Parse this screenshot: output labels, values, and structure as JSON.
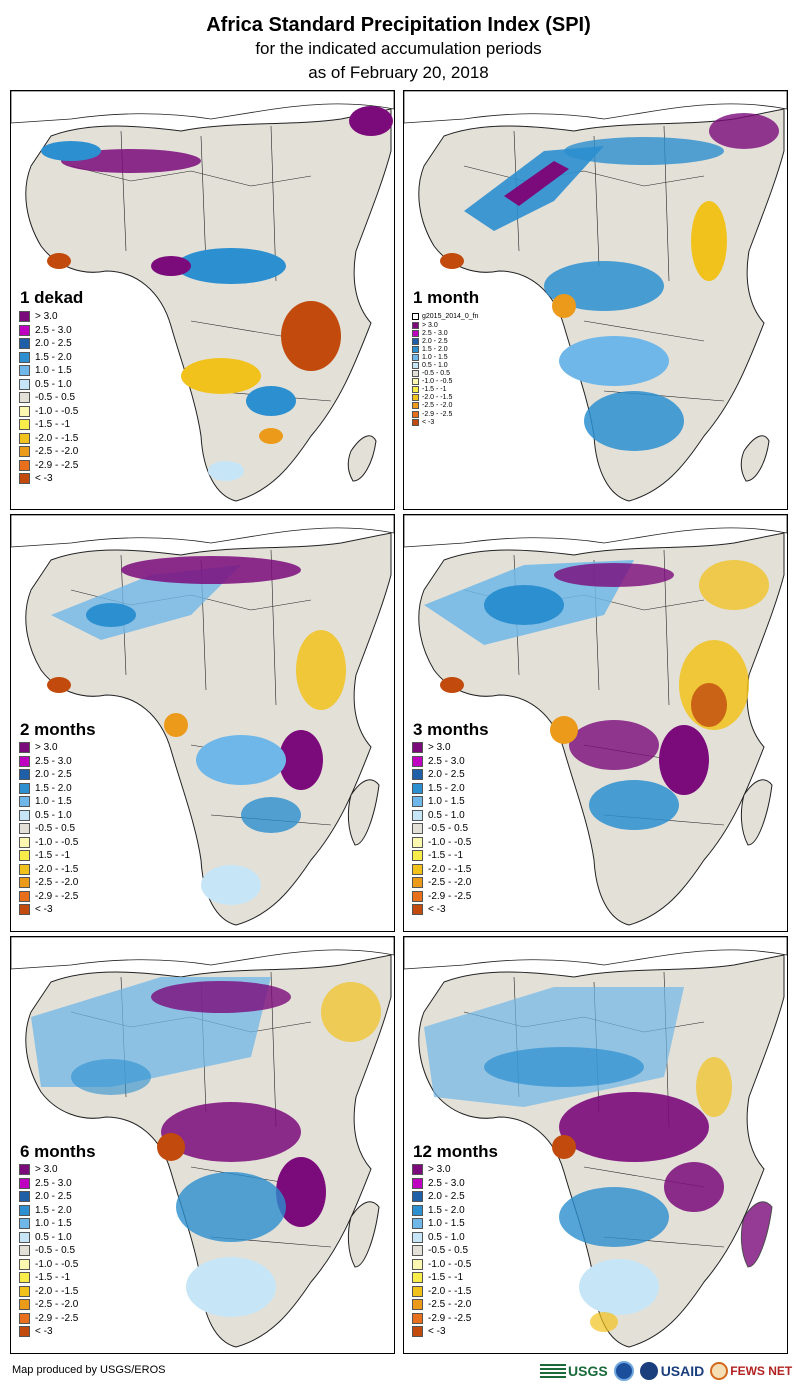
{
  "header": {
    "title": "Africa Standard Precipitation Index (SPI)",
    "subtitle": "for the indicated accumulation periods",
    "date_line": "as of February 20, 2018"
  },
  "colors": {
    "c_gt3": "#7b0a7b",
    "c_25_3": "#c000c0",
    "c_2_25": "#1f5fa8",
    "c_15_2": "#2c8fd0",
    "c_1_15": "#6fb7e8",
    "c_05_1": "#c6e6f7",
    "c_norm": "#e3e0d8",
    "c_m1_m05": "#fbf7b0",
    "c_m15_m1": "#f8ec4a",
    "c_m2_m15": "#f1c21c",
    "c_m25_m2": "#ec9a1a",
    "c_m29_m25": "#e8701c",
    "c_lt3": "#c14a0c",
    "land": "#e3e0d8",
    "border": "#222222"
  },
  "legend": [
    {
      "label": "> 3.0",
      "color": "#7b0a7b"
    },
    {
      "label": "2.5 - 3.0",
      "color": "#c000c0"
    },
    {
      "label": "2.0 - 2.5",
      "color": "#1f5fa8"
    },
    {
      "label": "1.5 - 2.0",
      "color": "#2c8fd0"
    },
    {
      "label": "1.0 - 1.5",
      "color": "#6fb7e8"
    },
    {
      "label": "0.5 - 1.0",
      "color": "#c6e6f7"
    },
    {
      "label": "-0.5 - 0.5",
      "color": "#e3e0d8"
    },
    {
      "label": "-1.0 - -0.5",
      "color": "#fbf7b0"
    },
    {
      "label": "-1.5 - -1",
      "color": "#f8ec4a"
    },
    {
      "label": "-2.0 - -1.5",
      "color": "#f1c21c"
    },
    {
      "label": "-2.5 - -2.0",
      "color": "#ec9a1a"
    },
    {
      "label": "-2.9 - -2.5",
      "color": "#e8701c"
    },
    {
      "label": "< -3",
      "color": "#c14a0c"
    }
  ],
  "legend_small": {
    "layer_name": "g2015_2014_0_fn",
    "labels": [
      "> 3.0",
      "2.5 - 3.0",
      "2.0 - 2.5",
      "1.5 - 2.0",
      "1.0 - 1.5",
      "0.5 - 1.0",
      "-0.5 - 0.5",
      "-1.0 - -0.5",
      "-1.5 - -1",
      "-2.0 - -1.5",
      "-2.5 - -2.0",
      "-2.9 - -2.5",
      "< -3"
    ]
  },
  "panels": [
    {
      "id": "1dekad",
      "title": "1 dekad"
    },
    {
      "id": "1month",
      "title": "1 month"
    },
    {
      "id": "2months",
      "title": "2 months"
    },
    {
      "id": "3months",
      "title": "3 months"
    },
    {
      "id": "6months",
      "title": "6 months"
    },
    {
      "id": "12months",
      "title": "12 months"
    }
  ],
  "footer": {
    "credit": "Map produced by USGS/EROS",
    "logo_usgs": "USGS",
    "logo_usaid": "USAID",
    "logo_fews": "FEWS NET"
  }
}
